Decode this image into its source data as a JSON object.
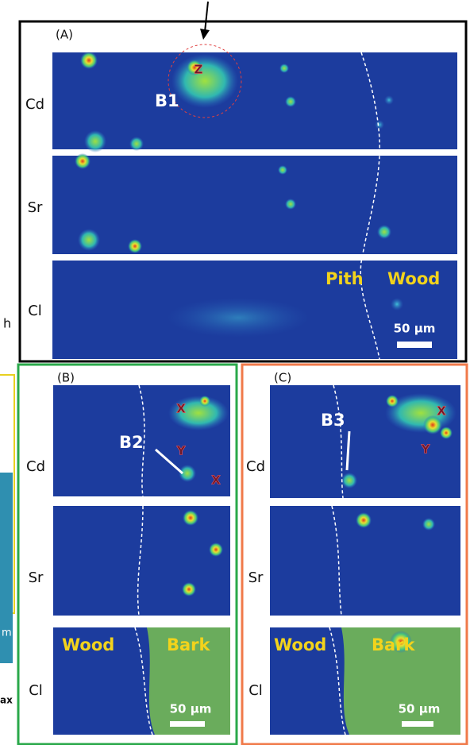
{
  "left_fragments": [
    "h",
    "m",
    "ax"
  ],
  "panels": {
    "a": {
      "label": "(A)",
      "rows": [
        "Cd",
        "Sr",
        "Cl"
      ],
      "callout": "B1",
      "marker": "Z",
      "regions": [
        "Pith",
        "Wood"
      ],
      "scale_bar": "50 µm"
    },
    "b": {
      "label": "(B)",
      "rows": [
        "Cd",
        "Sr",
        "Cl"
      ],
      "callout": "B2",
      "markers": [
        "X",
        "Y",
        "X"
      ],
      "regions": [
        "Wood",
        "Bark"
      ],
      "scale_bar": "50 µm"
    },
    "c": {
      "label": "(C)",
      "rows": [
        "Cd",
        "Sr",
        "Cl"
      ],
      "callout": "B3",
      "markers": [
        "X",
        "Y"
      ],
      "regions": [
        "Wood",
        "Bark"
      ],
      "scale_bar": "50 µm"
    }
  }
}
